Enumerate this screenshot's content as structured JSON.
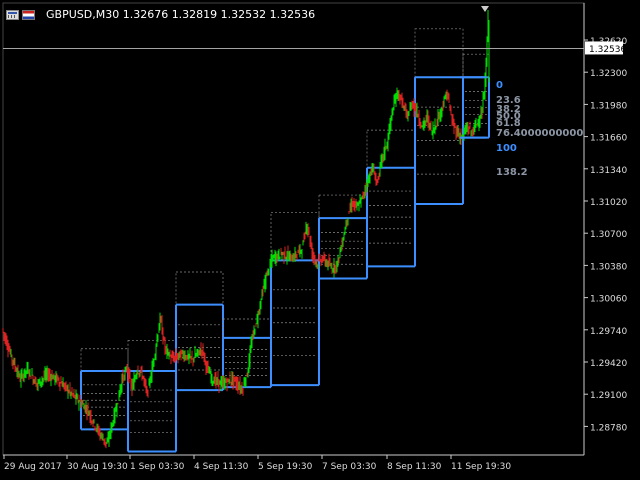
{
  "header": {
    "symbol_timeframe": "GBPUSD,M30",
    "ohlc": "1.32676 1.32819 1.32532 1.32536",
    "symbol_icon": "chart-window-icon",
    "flag_icon": "gb-us-flag-icon"
  },
  "chart_data": {
    "type": "candlestick",
    "title": "GBPUSD,M30 1.32676 1.32819 1.32532 1.32536",
    "price_axis": {
      "ticks": [
        "1.32620",
        "1.32300",
        "1.31980",
        "1.31660",
        "1.31340",
        "1.31020",
        "1.30700",
        "1.30380",
        "1.30060",
        "1.29740",
        "1.29420",
        "1.29100",
        "1.28780"
      ],
      "range": [
        1.2853,
        1.3295
      ],
      "current_price": "1.32536"
    },
    "time_axis": {
      "ticks": [
        "29 Aug 2017",
        "30 Aug 19:30",
        "1 Sep 03:30",
        "4 Sep 11:30",
        "5 Sep 19:30",
        "7 Sep 03:30",
        "8 Sep 11:30",
        "11 Sep 19:30"
      ]
    },
    "price_path": [
      [
        0,
        1.2975
      ],
      [
        5,
        1.296
      ],
      [
        10,
        1.2945
      ],
      [
        18,
        1.2925
      ],
      [
        25,
        1.2935
      ],
      [
        35,
        1.292
      ],
      [
        45,
        1.293
      ],
      [
        55,
        1.2925
      ],
      [
        65,
        1.2915
      ],
      [
        75,
        1.2905
      ],
      [
        85,
        1.2895
      ],
      [
        95,
        1.2875
      ],
      [
        105,
        1.286
      ],
      [
        110,
        1.288
      ],
      [
        115,
        1.29
      ],
      [
        120,
        1.2925
      ],
      [
        125,
        1.2935
      ],
      [
        130,
        1.2915
      ],
      [
        135,
        1.2935
      ],
      [
        140,
        1.293
      ],
      [
        145,
        1.291
      ],
      [
        150,
        1.2935
      ],
      [
        155,
        1.2965
      ],
      [
        158,
        1.2985
      ],
      [
        163,
        1.2955
      ],
      [
        170,
        1.2945
      ],
      [
        180,
        1.295
      ],
      [
        190,
        1.2945
      ],
      [
        200,
        1.2955
      ],
      [
        205,
        1.2935
      ],
      [
        210,
        1.2925
      ],
      [
        220,
        1.292
      ],
      [
        230,
        1.2925
      ],
      [
        240,
        1.2915
      ],
      [
        245,
        1.293
      ],
      [
        250,
        1.2965
      ],
      [
        255,
        1.2985
      ],
      [
        260,
        1.301
      ],
      [
        265,
        1.303
      ],
      [
        270,
        1.3045
      ],
      [
        280,
        1.305
      ],
      [
        290,
        1.3045
      ],
      [
        300,
        1.3055
      ],
      [
        305,
        1.308
      ],
      [
        310,
        1.305
      ],
      [
        315,
        1.304
      ],
      [
        320,
        1.3045
      ],
      [
        330,
        1.3035
      ],
      [
        335,
        1.304
      ],
      [
        340,
        1.306
      ],
      [
        345,
        1.3085
      ],
      [
        350,
        1.31
      ],
      [
        355,
        1.3095
      ],
      [
        360,
        1.3105
      ],
      [
        365,
        1.312
      ],
      [
        370,
        1.3135
      ],
      [
        375,
        1.312
      ],
      [
        380,
        1.3145
      ],
      [
        385,
        1.316
      ],
      [
        390,
        1.319
      ],
      [
        395,
        1.321
      ],
      [
        400,
        1.32
      ],
      [
        405,
        1.3185
      ],
      [
        410,
        1.32
      ],
      [
        415,
        1.319
      ],
      [
        420,
        1.3175
      ],
      [
        425,
        1.3185
      ],
      [
        430,
        1.317
      ],
      [
        440,
        1.3195
      ],
      [
        445,
        1.321
      ],
      [
        450,
        1.318
      ],
      [
        455,
        1.317
      ],
      [
        460,
        1.3165
      ],
      [
        465,
        1.3175
      ],
      [
        470,
        1.317
      ],
      [
        475,
        1.318
      ],
      [
        480,
        1.319
      ],
      [
        483,
        1.322
      ],
      [
        486,
        1.3282
      ],
      [
        487,
        1.3254
      ]
    ],
    "fibo_boxes": [
      {
        "start": 78,
        "end": 125,
        "high": 1.2933,
        "low": 1.2875
      },
      {
        "start": 125,
        "end": 173,
        "high": 1.2933,
        "low": 1.2853
      },
      {
        "start": 173,
        "end": 220,
        "high": 1.2999,
        "low": 1.2914
      },
      {
        "start": 220,
        "end": 268,
        "high": 1.2966,
        "low": 1.2917
      },
      {
        "start": 268,
        "end": 316,
        "high": 1.3043,
        "low": 1.2919
      },
      {
        "start": 316,
        "end": 364,
        "high": 1.3085,
        "low": 1.3025
      },
      {
        "start": 364,
        "end": 412,
        "high": 1.3135,
        "low": 1.3037
      },
      {
        "start": 412,
        "end": 460,
        "high": 1.3225,
        "low": 1.3099
      },
      {
        "start": 460,
        "end": 486,
        "high": 1.3225,
        "low": 1.3165
      }
    ],
    "fibo_levels": [
      "0",
      "23.6",
      "38.2",
      "50.0",
      "61.8",
      "76.4000000000",
      "100",
      "138.2"
    ],
    "colors": {
      "background": "#000000",
      "bull": "#00dd00",
      "bear": "#dd2222",
      "box": "#3d8fff",
      "dotted": "#8a8a8a",
      "axis_text": "#dddddd",
      "level_main": "#3d8fff",
      "level_minor": "#8c96a4"
    }
  }
}
